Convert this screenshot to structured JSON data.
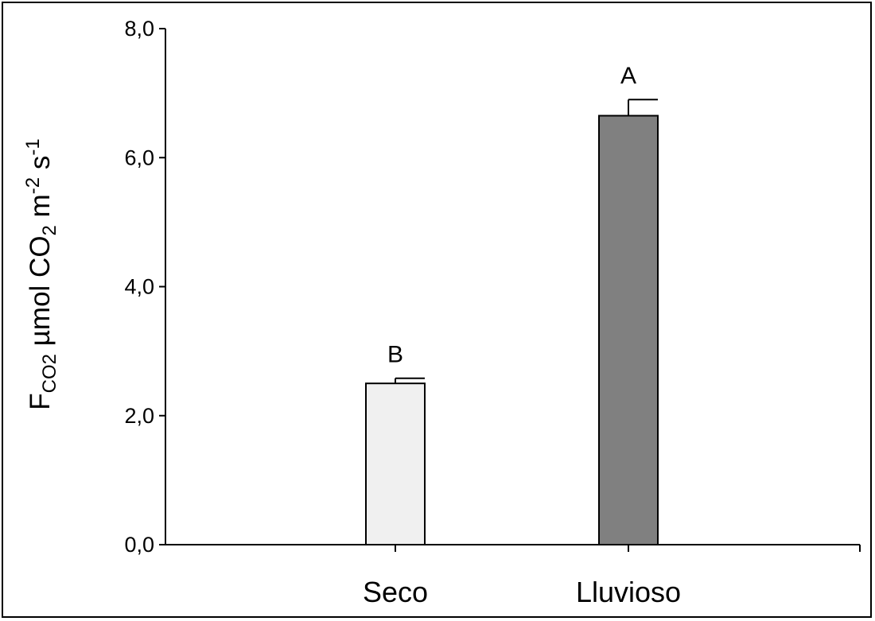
{
  "chart_data": {
    "type": "bar",
    "categories": [
      "Seco",
      "Lluvioso"
    ],
    "values": [
      2.5,
      6.65
    ],
    "error": [
      0.08,
      0.25
    ],
    "significance": [
      "B",
      "A"
    ],
    "colors": [
      "#f0f0f0",
      "#808080"
    ],
    "ylim": [
      0,
      8
    ],
    "yticks": [
      0,
      2,
      4,
      6,
      8
    ],
    "ytick_labels": [
      "0,0",
      "2,0",
      "4,0",
      "6,0",
      "8,0"
    ],
    "ylabel": {
      "F": "F",
      "F_sub": "CO2",
      "mid": " µmol CO",
      "co2_sub": "2",
      "m": " m",
      "m_sup": "-2",
      "s": " s",
      "s_sup": "-1"
    },
    "xlabel": "",
    "grid": false,
    "legend": "none"
  }
}
